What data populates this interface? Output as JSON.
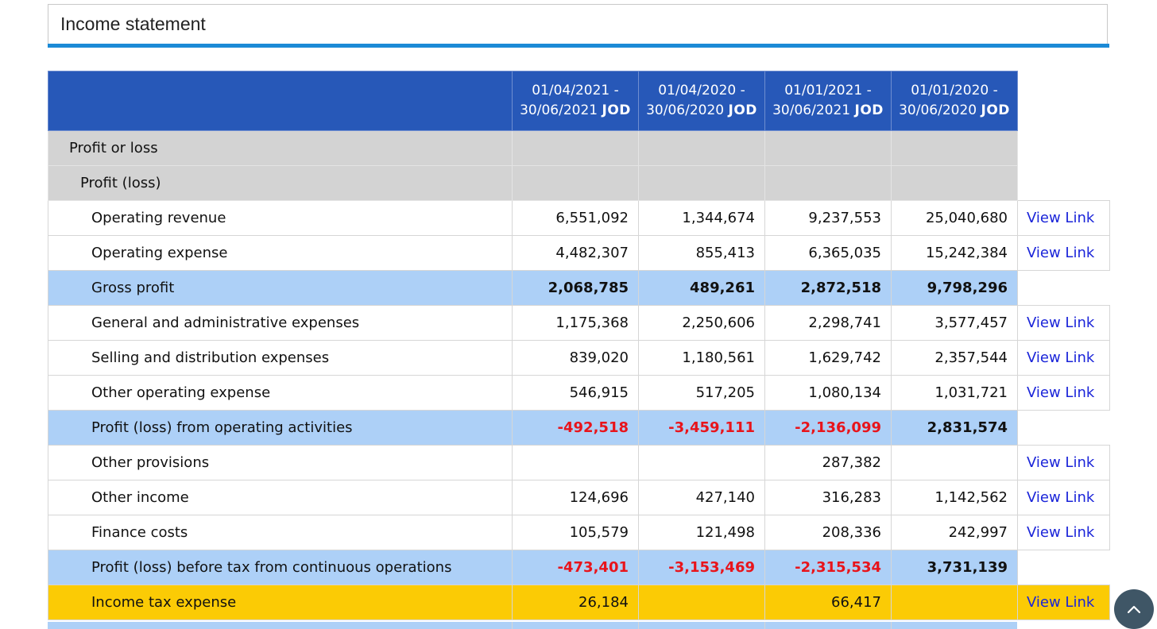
{
  "panel": {
    "title": "Income statement"
  },
  "columns": [
    {
      "range": "01/04/2021 - 30/06/2021",
      "currency": "JOD"
    },
    {
      "range": "01/04/2020 - 30/06/2020",
      "currency": "JOD"
    },
    {
      "range": "01/01/2021 - 30/06/2021",
      "currency": "JOD"
    },
    {
      "range": "01/01/2020 - 30/06/2020",
      "currency": "JOD"
    }
  ],
  "rows": [
    {
      "label": "Profit or loss",
      "style": "grey",
      "indent": 0,
      "values": [
        "",
        "",
        "",
        ""
      ],
      "link": ""
    },
    {
      "label": "Profit (loss)",
      "style": "grey",
      "indent": 1,
      "values": [
        "",
        "",
        "",
        ""
      ],
      "link": ""
    },
    {
      "label": "Operating revenue",
      "style": "white",
      "indent": 2,
      "values": [
        "6,551,092",
        "1,344,674",
        "9,237,553",
        "25,040,680"
      ],
      "link": "View Link"
    },
    {
      "label": "Operating expense",
      "style": "white",
      "indent": 2,
      "values": [
        "4,482,307",
        "855,413",
        "6,365,035",
        "15,242,384"
      ],
      "link": "View Link"
    },
    {
      "label": "Gross profit",
      "style": "blue",
      "indent": 2,
      "values": [
        "2,068,785",
        "489,261",
        "2,872,518",
        "9,798,296"
      ],
      "link": ""
    },
    {
      "label": "General and administrative expenses",
      "style": "white",
      "indent": 2,
      "values": [
        "1,175,368",
        "2,250,606",
        "2,298,741",
        "3,577,457"
      ],
      "link": "View Link"
    },
    {
      "label": "Selling and distribution expenses",
      "style": "white",
      "indent": 2,
      "values": [
        "839,020",
        "1,180,561",
        "1,629,742",
        "2,357,544"
      ],
      "link": "View Link"
    },
    {
      "label": "Other operating expense",
      "style": "white",
      "indent": 2,
      "values": [
        "546,915",
        "517,205",
        "1,080,134",
        "1,031,721"
      ],
      "link": "View Link"
    },
    {
      "label": "Profit (loss) from operating activities",
      "style": "blue",
      "indent": 2,
      "values": [
        "-492,518",
        "-3,459,111",
        "-2,136,099",
        "2,831,574"
      ],
      "link": ""
    },
    {
      "label": "Other provisions",
      "style": "white",
      "indent": 2,
      "values": [
        "",
        "",
        "287,382",
        ""
      ],
      "link": "View Link"
    },
    {
      "label": "Other income",
      "style": "white",
      "indent": 2,
      "values": [
        "124,696",
        "427,140",
        "316,283",
        "1,142,562"
      ],
      "link": "View Link"
    },
    {
      "label": "Finance costs",
      "style": "white",
      "indent": 2,
      "values": [
        "105,579",
        "121,498",
        "208,336",
        "242,997"
      ],
      "link": "View Link"
    },
    {
      "label": "Profit (loss) before tax from continuous operations",
      "style": "blue",
      "indent": 2,
      "values": [
        "-473,401",
        "-3,153,469",
        "-2,315,534",
        "3,731,139"
      ],
      "link": ""
    },
    {
      "label": "Income tax expense",
      "style": "yellow",
      "indent": 2,
      "values": [
        "26,184",
        "",
        "66,417",
        ""
      ],
      "link": "View Link"
    }
  ],
  "colors": {
    "header": "#2758b8",
    "accent_rule": "#1b8ad6",
    "subtotal": "#add0f7",
    "group": "#d3d3d3",
    "highlight": "#fbcb05",
    "negative": "#e8141b",
    "link": "#1a24d9"
  },
  "scroll_button": {
    "icon": "chevron-up-icon"
  }
}
